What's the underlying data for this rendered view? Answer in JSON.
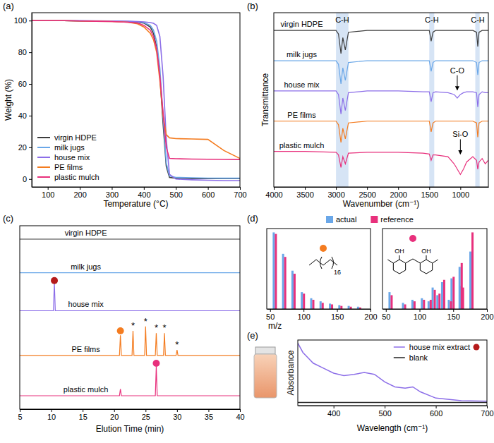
{
  "chart_data": [
    {
      "type": "line",
      "title": "(a)",
      "x_label": "Temperature (°C)",
      "y_label": "Weight (%)",
      "x": [
        50,
        100,
        150,
        200,
        250,
        300,
        350,
        380,
        400,
        420,
        430,
        440,
        450,
        460,
        470,
        480,
        500,
        550,
        600,
        650,
        700
      ],
      "series": [
        {
          "name": "virgin HDPE",
          "color": "#3d3d3d",
          "values": [
            100,
            100,
            100,
            99.8,
            99.7,
            99.6,
            99.3,
            99,
            98.5,
            96,
            92,
            83,
            65,
            35,
            8,
            1,
            0.5,
            0.3,
            0.2,
            0.2,
            0.2
          ]
        },
        {
          "name": "milk jugs",
          "color": "#6aa7e8",
          "values": [
            100,
            100,
            100,
            99.9,
            99.8,
            99.7,
            99.5,
            99.2,
            98.8,
            97,
            94,
            87,
            70,
            40,
            10,
            2,
            1,
            0.8,
            0.6,
            0.5,
            0.5
          ]
        },
        {
          "name": "house mix",
          "color": "#8c6ee8",
          "values": [
            100,
            100,
            100,
            100,
            99.9,
            99.8,
            99.6,
            99.4,
            99.2,
            98.8,
            98.3,
            97,
            90,
            65,
            25,
            3,
            0,
            -0.5,
            -0.8,
            -1,
            -1
          ]
        },
        {
          "name": "PE films",
          "color": "#f47c20",
          "values": [
            100,
            100,
            100,
            99.8,
            99.6,
            99.4,
            99,
            98,
            96,
            92,
            88,
            80,
            62,
            40,
            28,
            26,
            25.5,
            25.3,
            25,
            18,
            13
          ]
        },
        {
          "name": "plastic mulch",
          "color": "#e8307c",
          "values": [
            100,
            100,
            100,
            99.8,
            99.6,
            99.4,
            99,
            98.5,
            97,
            94,
            90,
            82,
            65,
            42,
            20,
            13,
            12.8,
            12.6,
            12.5,
            12.4,
            12.3
          ]
        }
      ],
      "xlim": [
        50,
        700
      ],
      "ylim": [
        -5,
        105
      ],
      "xticks": [
        100,
        200,
        300,
        400,
        500,
        600,
        700
      ],
      "yticks": [
        0,
        20,
        40,
        60,
        80,
        100
      ],
      "legend": "lower left"
    },
    {
      "type": "line",
      "title": "(b)",
      "x_label": "Wavenumber (cm⁻¹)",
      "y_label": "Transmittance",
      "x": [
        4000,
        3500,
        3000,
        2960,
        2920,
        2890,
        2850,
        2800,
        2500,
        2000,
        1600,
        1500,
        1470,
        1440,
        1400,
        1200,
        1100,
        1050,
        1000,
        950,
        900,
        800,
        740,
        720,
        700,
        650,
        600,
        550
      ],
      "series": [
        {
          "name": "virgin HDPE",
          "color": "#3d3d3d",
          "values": [
            9.3,
            9.3,
            9.3,
            9.1,
            8.0,
            8.9,
            8.2,
            9.2,
            9.3,
            9.3,
            9.3,
            9.3,
            8.7,
            9.2,
            9.3,
            9.3,
            9.3,
            9.3,
            9.3,
            9.3,
            9.3,
            9.3,
            9.2,
            8.4,
            9.2,
            9.3,
            9.3,
            9.3
          ]
        },
        {
          "name": "milk jugs",
          "color": "#6aa7e8",
          "values": [
            7.6,
            7.6,
            7.6,
            7.4,
            6.3,
            7.2,
            6.5,
            7.5,
            7.6,
            7.6,
            7.6,
            7.6,
            7.0,
            7.5,
            7.6,
            7.6,
            7.6,
            7.6,
            7.6,
            7.6,
            7.6,
            7.6,
            7.5,
            6.8,
            7.5,
            7.6,
            7.6,
            7.6
          ]
        },
        {
          "name": "house mix",
          "color": "#8c6ee8",
          "values": [
            5.9,
            5.9,
            5.9,
            5.7,
            4.6,
            5.5,
            4.8,
            5.8,
            5.9,
            5.9,
            5.85,
            5.85,
            5.3,
            5.8,
            5.85,
            5.8,
            5.7,
            5.5,
            5.7,
            5.8,
            5.85,
            5.85,
            5.8,
            5.0,
            5.7,
            5.85,
            5.8,
            5.8
          ]
        },
        {
          "name": "PE films",
          "color": "#f47c20",
          "values": [
            4.2,
            4.2,
            4.2,
            4.0,
            3.0,
            3.8,
            3.2,
            4.1,
            4.2,
            4.2,
            4.2,
            4.2,
            3.6,
            4.1,
            4.2,
            4.2,
            4.2,
            4.2,
            4.2,
            4.2,
            4.2,
            4.2,
            4.1,
            3.3,
            4.1,
            4.2,
            4.2,
            4.2
          ]
        },
        {
          "name": "plastic mulch",
          "color": "#e8307c",
          "values": [
            2.5,
            2.5,
            2.45,
            2.3,
            1.6,
            2.2,
            1.8,
            2.4,
            2.45,
            2.45,
            2.4,
            2.35,
            2.0,
            2.3,
            2.3,
            2.2,
            1.8,
            1.5,
            1.2,
            1.5,
            1.9,
            2.2,
            2.0,
            1.5,
            1.9,
            2.1,
            1.8,
            2.0
          ]
        }
      ],
      "xlim": [
        4000,
        550
      ],
      "ylim": [
        0.5,
        10.3
      ],
      "xticks": [
        4000,
        3500,
        3000,
        2500,
        2000,
        1500,
        1000
      ],
      "tick_labels": "x",
      "bands": [
        [
          3000,
          2800
        ],
        [
          1500,
          1420
        ],
        [
          760,
          690
        ]
      ],
      "annotations": [
        {
          "text": "C-H",
          "x": 2900,
          "y": 9.75
        },
        {
          "text": "C-H",
          "x": 1460,
          "y": 9.75
        },
        {
          "text": "C-H",
          "x": 720,
          "y": 9.75
        }
      ],
      "callouts": [
        {
          "text": "C-O",
          "x": 1050,
          "y": 6.9
        },
        {
          "text": "Si-O",
          "x": 1000,
          "y": 3.3
        }
      ]
    },
    {
      "type": "line",
      "title": "(c)",
      "x_label": "Elution Time (min)",
      "series": [
        {
          "name": "virgin HDPE",
          "color": "#3d3d3d",
          "x": [
            5,
            40
          ],
          "values": [
            9.4,
            9.4
          ]
        },
        {
          "name": "milk jugs",
          "color": "#6aa7e8",
          "x": [
            5,
            40
          ],
          "values": [
            7.9,
            7.9
          ]
        },
        {
          "name": "house mix",
          "color": "#8c6ee8",
          "x": [
            5,
            10.35,
            10.5,
            10.65,
            40
          ],
          "values": [
            6.2,
            6.2,
            7.5,
            6.2,
            6.2
          ]
        },
        {
          "name": "PE films",
          "color": "#f47c20",
          "x": [
            5,
            20.85,
            21,
            21.15,
            22.85,
            23,
            23.15,
            24.85,
            25,
            25.15,
            26.55,
            26.7,
            26.85,
            27.85,
            28,
            28.15,
            29.85,
            30,
            30.15,
            40
          ],
          "values": [
            4.2,
            4.2,
            5.1,
            4.2,
            4.2,
            5.3,
            4.2,
            4.2,
            5.5,
            4.2,
            4.2,
            5.2,
            4.2,
            4.2,
            5.2,
            4.2,
            4.2,
            4.45,
            4.2,
            4.2
          ]
        },
        {
          "name": "plastic mulch",
          "color": "#e8307c",
          "x": [
            5,
            20.85,
            21,
            21.15,
            26.55,
            26.7,
            26.85,
            40
          ],
          "values": [
            2.4,
            2.4,
            2.7,
            2.4,
            2.4,
            3.7,
            2.4,
            2.4
          ]
        }
      ],
      "xlim": [
        5,
        40
      ],
      "ylim": [
        1.8,
        10
      ],
      "xticks": [
        5,
        10,
        15,
        20,
        25,
        30,
        35,
        40
      ],
      "tick_labels": "x",
      "annotations": [
        {
          "text": "*",
          "x": 23,
          "y": 5.4
        },
        {
          "text": "*",
          "x": 25,
          "y": 5.6
        },
        {
          "text": "*",
          "x": 26.7,
          "y": 5.3
        },
        {
          "text": "*",
          "x": 28,
          "y": 5.3
        },
        {
          "text": "*",
          "x": 30,
          "y": 4.55
        }
      ],
      "peak_markers": [
        {
          "x": 10.5,
          "y": 7.55,
          "color": "#b51a1a"
        },
        {
          "x": 21,
          "y": 5.3,
          "color": "#f47c20"
        },
        {
          "x": 26.7,
          "y": 3.85,
          "color": "#e8307c"
        }
      ]
    },
    {
      "type": "bar",
      "title": "(d)",
      "x_label": "m/z",
      "x": [
        57,
        71,
        85,
        99,
        113,
        127,
        141,
        155,
        169,
        183
      ],
      "series": [
        {
          "name": "actual",
          "color": "#6aa7e8",
          "values": [
            100,
            72,
            50,
            22,
            14,
            10,
            7,
            5,
            4,
            3
          ]
        },
        {
          "name": "reference",
          "color": "#e8307c",
          "values": [
            98,
            68,
            46,
            20,
            12,
            8,
            6,
            4,
            3,
            2
          ]
        }
      ],
      "xlim": [
        45,
        200
      ],
      "ylim": [
        0,
        105
      ],
      "xticks": [
        50,
        100,
        150,
        200
      ],
      "tick_labels": "x",
      "legend": "top",
      "annotations": [
        {
          "text": "16"
        }
      ],
      "peak_markers": [
        {
          "color": "#f47c20"
        }
      ]
    },
    {
      "type": "bar",
      "x": [
        57,
        77,
        91,
        105,
        115,
        121,
        128,
        135,
        145,
        149,
        161,
        163,
        177
      ],
      "series": [
        {
          "color": "#6aa7e8",
          "values": [
            22,
            8,
            12,
            14,
            10,
            28,
            18,
            35,
            12,
            40,
            55,
            30,
            75
          ]
        },
        {
          "color": "#e8307c",
          "values": [
            18,
            6,
            10,
            12,
            12,
            25,
            20,
            38,
            10,
            42,
            60,
            28,
            100
          ]
        }
      ],
      "xlim": [
        45,
        200
      ],
      "ylim": [
        0,
        105
      ],
      "xticks": [
        50,
        100,
        150,
        200
      ],
      "tick_labels": "x",
      "annotations": [
        {
          "text": "OH"
        },
        {
          "text": "OH"
        }
      ],
      "peak_markers": [
        {
          "color": "#e8307c"
        }
      ]
    },
    {
      "type": "line",
      "title": "(e)",
      "x_label": "Wavelength (cm⁻¹)",
      "y_label": "Absorbance",
      "x": [
        330,
        340,
        360,
        380,
        400,
        420,
        440,
        460,
        480,
        500,
        520,
        540,
        555,
        570,
        600,
        650,
        700
      ],
      "series": [
        {
          "name": "house mix extract",
          "color": "#8c6ee8",
          "values": [
            1.0,
            0.85,
            0.68,
            0.6,
            0.52,
            0.48,
            0.5,
            0.53,
            0.5,
            0.38,
            0.3,
            0.28,
            0.3,
            0.22,
            0.12,
            0.08,
            0.07
          ]
        },
        {
          "name": "blank",
          "color": "#222222",
          "values": [
            0.05,
            0.05,
            0.05,
            0.05,
            0.05,
            0.05,
            0.05,
            0.05,
            0.05,
            0.05,
            0.05,
            0.05,
            0.05,
            0.05,
            0.05,
            0.05,
            0.05
          ]
        }
      ],
      "xlim": [
        330,
        700
      ],
      "ylim": [
        0,
        1.05
      ],
      "xticks": [
        400,
        500,
        600,
        700
      ],
      "tick_labels": "x",
      "legend": "upper right",
      "peak_markers": [
        {
          "color": "#b51a1a"
        }
      ]
    }
  ]
}
